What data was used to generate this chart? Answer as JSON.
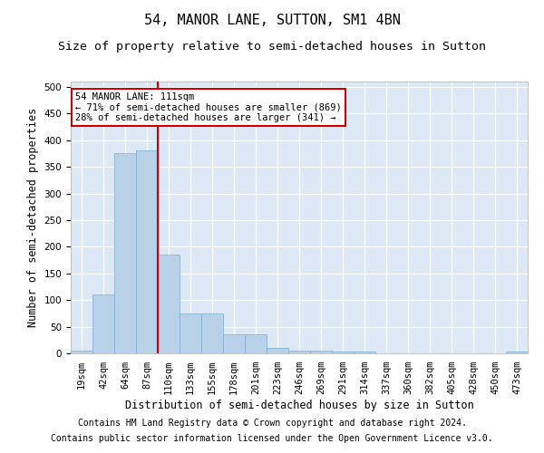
{
  "title": "54, MANOR LANE, SUTTON, SM1 4BN",
  "subtitle": "Size of property relative to semi-detached houses in Sutton",
  "xlabel": "Distribution of semi-detached houses by size in Sutton",
  "ylabel": "Number of semi-detached properties",
  "footnote1": "Contains HM Land Registry data © Crown copyright and database right 2024.",
  "footnote2": "Contains public sector information licensed under the Open Government Licence v3.0.",
  "categories": [
    "19sqm",
    "42sqm",
    "64sqm",
    "87sqm",
    "110sqm",
    "133sqm",
    "155sqm",
    "178sqm",
    "201sqm",
    "223sqm",
    "246sqm",
    "269sqm",
    "291sqm",
    "314sqm",
    "337sqm",
    "360sqm",
    "382sqm",
    "405sqm",
    "428sqm",
    "450sqm",
    "473sqm"
  ],
  "values": [
    5,
    110,
    375,
    380,
    185,
    75,
    75,
    35,
    35,
    10,
    5,
    5,
    3,
    3,
    0,
    0,
    0,
    0,
    0,
    0,
    3
  ],
  "bar_color": "#b8d0e8",
  "bar_edge_color": "#7aafd4",
  "property_line_x": 4.0,
  "annotation_text": "54 MANOR LANE: 111sqm\n← 71% of semi-detached houses are smaller (869)\n28% of semi-detached houses are larger (341) →",
  "annotation_box_color": "#ffffff",
  "annotation_box_edge": "#cc0000",
  "red_line_color": "#cc0000",
  "ylim": [
    0,
    510
  ],
  "yticks": [
    0,
    50,
    100,
    150,
    200,
    250,
    300,
    350,
    400,
    450,
    500
  ],
  "fig_background": "#ffffff",
  "plot_background": "#dce8f5",
  "title_fontsize": 11,
  "subtitle_fontsize": 9.5,
  "axis_label_fontsize": 8.5,
  "tick_fontsize": 7.5,
  "footnote_fontsize": 7
}
